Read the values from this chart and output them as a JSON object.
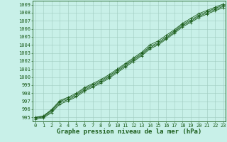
{
  "x": [
    0,
    1,
    2,
    3,
    4,
    5,
    6,
    7,
    8,
    9,
    10,
    11,
    12,
    13,
    14,
    15,
    16,
    17,
    18,
    19,
    20,
    21,
    22,
    23
  ],
  "line1": [
    995.0,
    995.2,
    996.0,
    997.1,
    997.5,
    998.0,
    998.7,
    999.2,
    999.7,
    1000.3,
    1001.0,
    1001.7,
    1002.4,
    1003.1,
    1004.0,
    1004.5,
    1005.2,
    1005.9,
    1006.7,
    1007.3,
    1007.9,
    1008.3,
    1008.7,
    1009.1
  ],
  "line2": [
    995.0,
    995.15,
    995.9,
    997.0,
    997.35,
    997.85,
    998.55,
    999.05,
    999.55,
    1000.15,
    1000.85,
    1001.55,
    1002.25,
    1002.95,
    1003.8,
    1004.3,
    1005.0,
    1005.75,
    1006.55,
    1007.1,
    1007.7,
    1008.15,
    1008.55,
    1008.95
  ],
  "line3": [
    994.9,
    995.05,
    995.75,
    996.85,
    997.2,
    997.7,
    998.4,
    998.9,
    999.4,
    1000.0,
    1000.7,
    1001.4,
    1002.1,
    1002.8,
    1003.65,
    1004.15,
    1004.85,
    1005.6,
    1006.4,
    1006.95,
    1007.55,
    1008.0,
    1008.4,
    1008.8
  ],
  "line4": [
    994.8,
    994.95,
    995.6,
    996.65,
    997.05,
    997.55,
    998.25,
    998.75,
    999.25,
    999.85,
    1000.55,
    1001.25,
    1001.95,
    1002.65,
    1003.5,
    1004.0,
    1004.7,
    1005.45,
    1006.25,
    1006.8,
    1007.4,
    1007.85,
    1008.25,
    1008.65
  ],
  "xlim": [
    -0.3,
    23.3
  ],
  "ylim": [
    994.5,
    1009.5
  ],
  "yticks": [
    995,
    996,
    997,
    998,
    999,
    1000,
    1001,
    1002,
    1003,
    1004,
    1005,
    1006,
    1007,
    1008,
    1009
  ],
  "xticks": [
    0,
    1,
    2,
    3,
    4,
    5,
    6,
    7,
    8,
    9,
    10,
    11,
    12,
    13,
    14,
    15,
    16,
    17,
    18,
    19,
    20,
    21,
    22,
    23
  ],
  "line_color": "#1a5c1a",
  "bg_color": "#c8f0e8",
  "grid_color": "#a0ccc0",
  "xlabel": "Graphe pression niveau de la mer (hPa)",
  "tick_fontsize": 5.0,
  "label_fontsize": 6.5
}
